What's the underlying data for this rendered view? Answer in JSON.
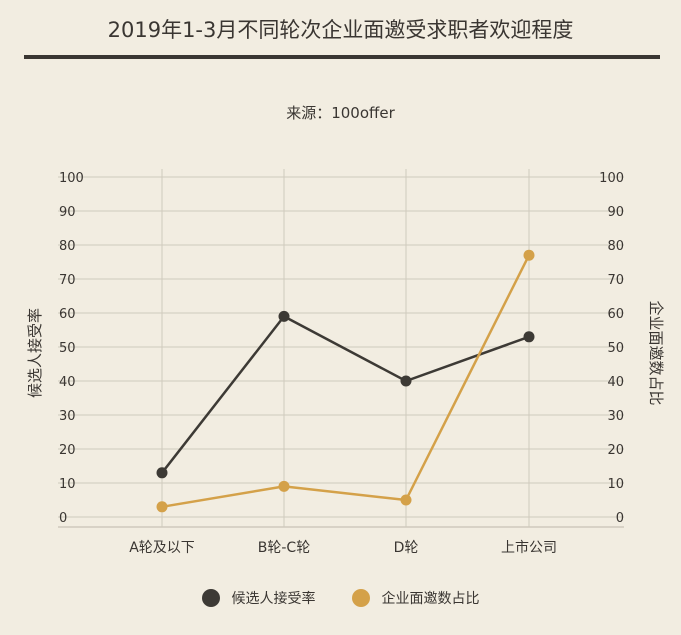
{
  "title": "2019年1-3月不同轮次企业面邀受求职者欢迎程度",
  "source": "来源：100offer",
  "colors": {
    "background": "#f2ede1",
    "series_dark": "#3d3a35",
    "series_gold": "#d4a149",
    "grid": "#cfcabd",
    "text": "#3a3632"
  },
  "chart_data": {
    "type": "line",
    "categories": [
      "A轮及以下",
      "B轮-C轮",
      "D轮",
      "上市公司"
    ],
    "series": [
      {
        "name": "候选人接受率",
        "axis": "left",
        "color": "#3d3a35",
        "values": [
          13,
          59,
          40,
          53
        ]
      },
      {
        "name": "企业面邀数占比",
        "axis": "right",
        "color": "#d4a149",
        "values": [
          3,
          9,
          5,
          77
        ]
      }
    ],
    "ylabel_left": "候选人接受率",
    "ylabel_right": "企业面邀数占比",
    "ylim": [
      0,
      100
    ],
    "y_ticks": [
      0,
      10,
      20,
      30,
      40,
      50,
      60,
      70,
      80,
      90,
      100
    ],
    "grid": "horizontal-and-vertical",
    "legend_position": "bottom"
  }
}
